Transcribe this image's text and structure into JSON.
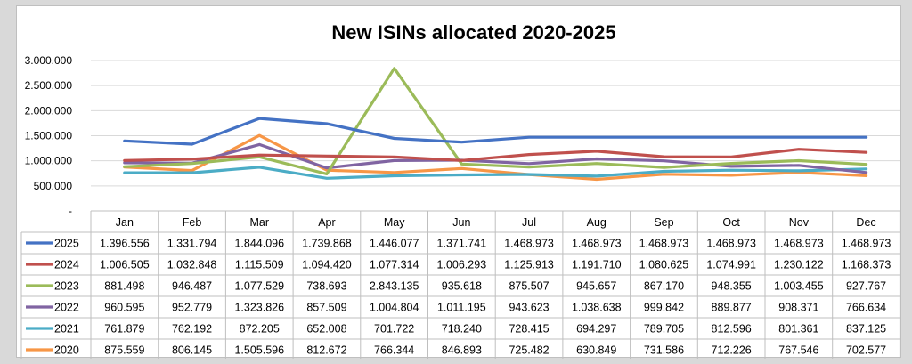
{
  "chart_data": {
    "type": "line",
    "title": "New ISINs allocated 2020-2025",
    "categories": [
      "Jan",
      "Feb",
      "Mar",
      "Apr",
      "May",
      "Jun",
      "Jul",
      "Aug",
      "Sep",
      "Oct",
      "Nov",
      "Dec"
    ],
    "ylim": [
      0,
      3000000
    ],
    "y_ticks": [
      "-",
      "500.000",
      "1.000.000",
      "1.500.000",
      "2.000.000",
      "2.500.000",
      "3.000.000"
    ],
    "grid": true,
    "legend": "data-table",
    "series": [
      {
        "name": "2025",
        "color": "#4472c4",
        "values": [
          1396556,
          1331794,
          1844096,
          1739868,
          1446077,
          1371741,
          1468973,
          1468973,
          1468973,
          1468973,
          1468973,
          1468973
        ],
        "labels": [
          "1.396.556",
          "1.331.794",
          "1.844.096",
          "1.739.868",
          "1.446.077",
          "1.371.741",
          "1.468.973",
          "1.468.973",
          "1.468.973",
          "1.468.973",
          "1.468.973",
          "1.468.973"
        ]
      },
      {
        "name": "2024",
        "color": "#c0504d",
        "values": [
          1006505,
          1032848,
          1115509,
          1094420,
          1077314,
          1006293,
          1125913,
          1191710,
          1080625,
          1074991,
          1230122,
          1168373
        ],
        "labels": [
          "1.006.505",
          "1.032.848",
          "1.115.509",
          "1.094.420",
          "1.077.314",
          "1.006.293",
          "1.125.913",
          "1.191.710",
          "1.080.625",
          "1.074.991",
          "1.230.122",
          "1.168.373"
        ]
      },
      {
        "name": "2023",
        "color": "#9bbb59",
        "values": [
          881498,
          946487,
          1077529,
          738693,
          2843135,
          935618,
          875507,
          945657,
          867170,
          948355,
          1003455,
          927767
        ],
        "labels": [
          "881.498",
          "946.487",
          "1.077.529",
          "738.693",
          "2.843.135",
          "935.618",
          "875.507",
          "945.657",
          "867.170",
          "948.355",
          "1.003.455",
          "927.767"
        ]
      },
      {
        "name": "2022",
        "color": "#8064a2",
        "values": [
          960595,
          952779,
          1323826,
          857509,
          1004804,
          1011195,
          943623,
          1038638,
          999842,
          889877,
          908371,
          766634
        ],
        "labels": [
          "960.595",
          "952.779",
          "1.323.826",
          "857.509",
          "1.004.804",
          "1.011.195",
          "943.623",
          "1.038.638",
          "999.842",
          "889.877",
          "908.371",
          "766.634"
        ]
      },
      {
        "name": "2021",
        "color": "#4bacc6",
        "values": [
          761879,
          762192,
          872205,
          652008,
          701722,
          718240,
          728415,
          694297,
          789705,
          812596,
          801361,
          837125
        ],
        "labels": [
          "761.879",
          "762.192",
          "872.205",
          "652.008",
          "701.722",
          "718.240",
          "728.415",
          "694.297",
          "789.705",
          "812.596",
          "801.361",
          "837.125"
        ]
      },
      {
        "name": "2020",
        "color": "#f79646",
        "values": [
          875559,
          806145,
          1505596,
          812672,
          766344,
          846893,
          725482,
          630849,
          731586,
          712226,
          767546,
          702577
        ],
        "labels": [
          "875.559",
          "806.145",
          "1.505.596",
          "812.672",
          "766.344",
          "846.893",
          "725.482",
          "630.849",
          "731.586",
          "712.226",
          "767.546",
          "702.577"
        ]
      }
    ]
  }
}
